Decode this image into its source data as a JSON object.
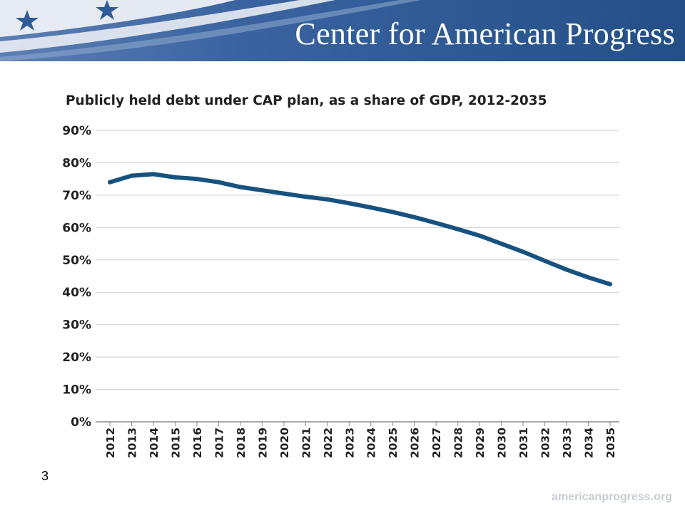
{
  "header": {
    "org_title": "Center for American Progress",
    "colors": {
      "banner_dark": "#244f86",
      "banner_light": "#3d6aa5",
      "star": "#ffffff"
    }
  },
  "slide": {
    "number": "3",
    "site": "americanprogress.org",
    "site_color": "#c6ccd3"
  },
  "chart_data": {
    "type": "line",
    "title": "Publicly held debt under CAP plan, as a share of GDP, 2012-2035",
    "xlabel": "",
    "ylabel": "",
    "ylim": [
      0,
      90
    ],
    "y_ticks": [
      "0%",
      "10%",
      "20%",
      "30%",
      "40%",
      "50%",
      "60%",
      "70%",
      "80%",
      "90%"
    ],
    "grid": true,
    "legend": "none",
    "line_color": "#17527f",
    "categories": [
      "2012",
      "2013",
      "2014",
      "2015",
      "2016",
      "2017",
      "2018",
      "2019",
      "2020",
      "2021",
      "2022",
      "2023",
      "2024",
      "2025",
      "2026",
      "2027",
      "2028",
      "2029",
      "2030",
      "2031",
      "2032",
      "2033",
      "2034",
      "2035"
    ],
    "values": [
      74,
      76,
      76.5,
      75.5,
      75,
      74,
      72.5,
      71.5,
      70.5,
      69.5,
      68.7,
      67.5,
      66.2,
      64.8,
      63.2,
      61.4,
      59.5,
      57.5,
      55,
      52.5,
      49.7,
      47,
      44.6,
      42.5
    ]
  }
}
